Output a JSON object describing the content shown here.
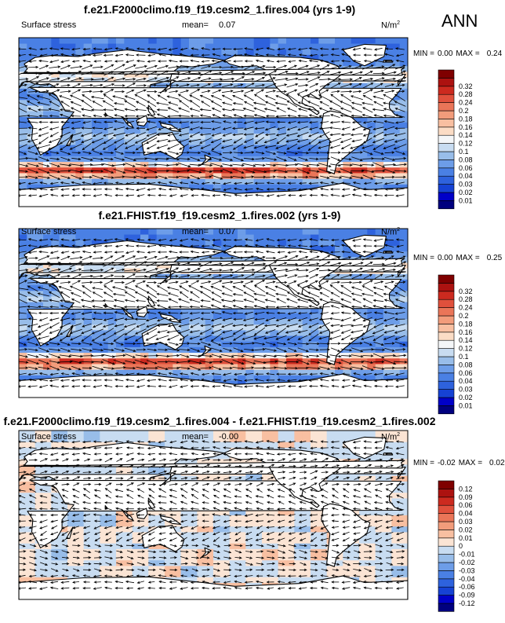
{
  "season": "ANN",
  "colors": {
    "main_scale": [
      "#00007f",
      "#0000c8",
      "#1642d4",
      "#2e62dd",
      "#4a80e4",
      "#6d9de8",
      "#98bde9",
      "#c8dcf1",
      "#f4f6f8",
      "#fbdcc5",
      "#f8bfa1",
      "#f29c7b",
      "#ea7558",
      "#e0503c",
      "#cc2a1f",
      "#ac1210",
      "#7f0000"
    ],
    "diff_scale": [
      "#00007f",
      "#0000c8",
      "#1642d4",
      "#2e62dd",
      "#4a80e4",
      "#6d9de8",
      "#98bde9",
      "#c8dcf1",
      "#fbe4d4",
      "#f8bfa1",
      "#f29c7b",
      "#ea7558",
      "#e0503c",
      "#cc2a1f",
      "#ac1210",
      "#7f0000"
    ],
    "land": "#ffffff",
    "coast": "#000000"
  },
  "chart_data": [
    {
      "type": "heatmap",
      "title": "f.e21.F2000climo.f19_f19.cesm2_1.fires.004 (yrs 1-9)",
      "variable": "Surface stress",
      "mean_label": "mean=",
      "mean": "0.07",
      "units_base": "N/m",
      "units_exp": "2",
      "min_label": "MIN =",
      "min": "0.00",
      "max_label": "MAX =",
      "max": "0.24",
      "scale": "main",
      "levels": [
        "0.01",
        "0.02",
        "0.03",
        "0.04",
        "0.06",
        "0.08",
        "0.1",
        "0.12",
        "0.14",
        "0.16",
        "0.18",
        "0.2",
        "0.24",
        "0.28",
        "0.32"
      ]
    },
    {
      "type": "heatmap",
      "title": "f.e21.FHIST.f19_f19.cesm2_1.fires.002 (yrs 1-9)",
      "variable": "Surface stress",
      "mean_label": "mean=",
      "mean": "0.07",
      "units_base": "N/m",
      "units_exp": "2",
      "min_label": "MIN =",
      "min": "0.00",
      "max_label": "MAX =",
      "max": "0.25",
      "scale": "main",
      "levels": [
        "0.01",
        "0.02",
        "0.03",
        "0.04",
        "0.06",
        "0.08",
        "0.1",
        "0.12",
        "0.14",
        "0.16",
        "0.18",
        "0.2",
        "0.24",
        "0.28",
        "0.32"
      ]
    },
    {
      "type": "heatmap",
      "title": "f.e21.F2000climo.f19_f19.cesm2_1.fires.004 - f.e21.FHIST.f19_f19.cesm2_1.fires.002",
      "variable": "Surface stress",
      "mean_label": "mean=",
      "mean": "-0.00",
      "units_base": "N/m",
      "units_exp": "2",
      "min_label": "MIN =",
      "min": "-0.02",
      "max_label": "MAX =",
      "max": "0.02",
      "scale": "diff",
      "levels": [
        "-0.12",
        "-0.09",
        "-0.06",
        "-0.04",
        "-0.03",
        "-0.02",
        "-0.01",
        "0",
        "0.01",
        "0.02",
        "0.03",
        "0.04",
        "0.06",
        "0.09",
        "0.12"
      ]
    }
  ]
}
